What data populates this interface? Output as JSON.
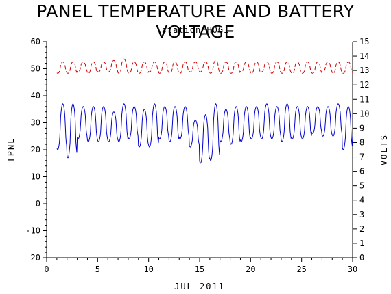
{
  "chart_data": {
    "type": "line",
    "title": "PANEL TEMPERATURE AND BATTERY VOLTAGE",
    "subtitle": "station=HOGI",
    "xlabel": "JUL 2011",
    "ylabel_left": "TPNL",
    "ylabel_right": "VOLTS",
    "xlim": [
      0,
      30
    ],
    "ylim_left": [
      -20,
      60
    ],
    "ylim_right": [
      0,
      15
    ],
    "x_ticks": [
      0,
      5,
      10,
      15,
      20,
      25,
      30
    ],
    "y_left_ticks": [
      -20,
      -10,
      0,
      10,
      20,
      30,
      40,
      50,
      60
    ],
    "y_right_ticks": [
      0,
      1,
      2,
      3,
      4,
      5,
      6,
      7,
      8,
      9,
      10,
      11,
      12,
      13,
      14,
      15
    ],
    "grid": false,
    "series": [
      {
        "axis": "left",
        "color": "#0000cc",
        "style": "solid",
        "daily_min": [
          20,
          17,
          24,
          23,
          23,
          23,
          23,
          24,
          21,
          21,
          24,
          23,
          24,
          21,
          15,
          16,
          23,
          22,
          23,
          24,
          24,
          24,
          23,
          24,
          24,
          26,
          25,
          25,
          20,
          25
        ],
        "daily_max": [
          37,
          37,
          36,
          36,
          36,
          34,
          37,
          36,
          35,
          37,
          36,
          36,
          36,
          31,
          33,
          37,
          35,
          36,
          36,
          36,
          37,
          36,
          37,
          36,
          36,
          36,
          36,
          37,
          36,
          36
        ]
      },
      {
        "axis": "right",
        "color": "#cc0000",
        "style": "dashed",
        "daily_min": [
          12.8,
          12.8,
          12.9,
          12.8,
          12.9,
          12.9,
          12.8,
          12.8,
          12.8,
          12.9,
          12.8,
          12.8,
          12.8,
          12.9,
          12.9,
          12.8,
          12.8,
          12.8,
          12.9,
          12.8,
          12.9,
          12.8,
          12.8,
          12.8,
          12.8,
          12.8,
          12.9,
          12.8,
          12.8,
          12.8
        ],
        "daily_max": [
          13.6,
          13.6,
          13.6,
          13.6,
          13.6,
          13.7,
          13.8,
          13.6,
          13.6,
          13.6,
          13.6,
          13.6,
          13.6,
          13.6,
          13.6,
          13.7,
          13.6,
          13.6,
          13.6,
          13.6,
          13.6,
          13.6,
          13.6,
          13.6,
          13.6,
          13.6,
          13.6,
          13.6,
          13.6,
          13.6
        ]
      }
    ]
  }
}
